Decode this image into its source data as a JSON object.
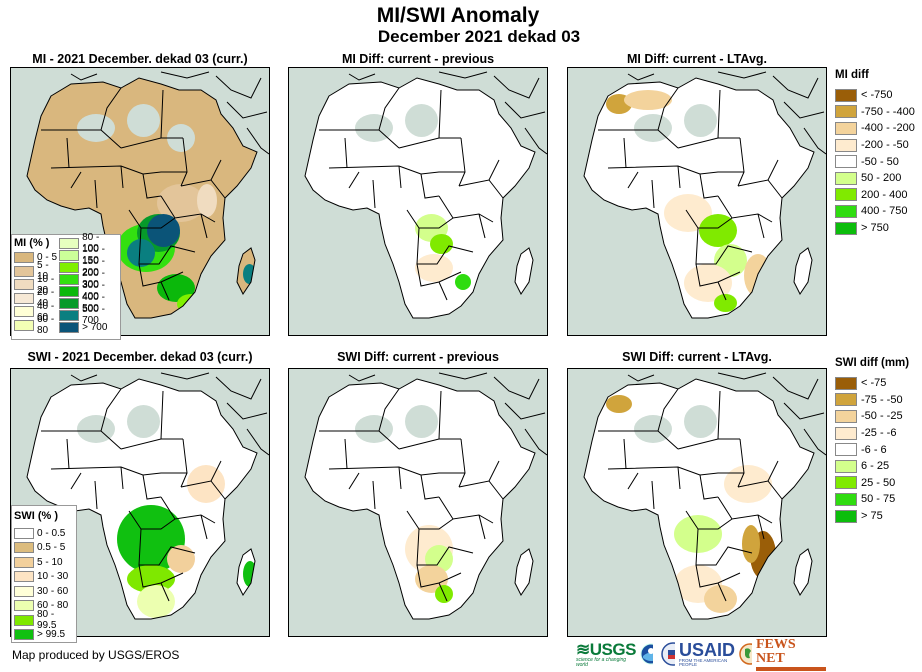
{
  "header": {
    "title": "MI/SWI Anomaly",
    "subtitle": "December 2021 dekad 03"
  },
  "panels": [
    {
      "id": "mi-current",
      "title": "MI - 2021 December. dekad 03 (curr.)",
      "variable": "MI",
      "type": "current"
    },
    {
      "id": "mi-diff-previous",
      "title": "MI Diff: current - previous",
      "variable": "MI",
      "type": "diff-previous"
    },
    {
      "id": "mi-diff-ltavg",
      "title": "MI Diff: current - LTAvg.",
      "variable": "MI",
      "type": "diff-ltavg"
    },
    {
      "id": "swi-current",
      "title": "SWI - 2021 December. dekad 03 (curr.)",
      "variable": "SWI",
      "type": "current"
    },
    {
      "id": "swi-diff-previous",
      "title": "SWI Diff: current - previous",
      "variable": "SWI",
      "type": "diff-previous"
    },
    {
      "id": "swi-diff-ltavg",
      "title": "SWI Diff: current - LTAvg.",
      "variable": "SWI",
      "type": "diff-ltavg"
    }
  ],
  "legends": {
    "mi_percent": {
      "title": "MI (% )",
      "col1": [
        {
          "label": "0 - 5",
          "color": "#d9b77e"
        },
        {
          "label": "5 - 10",
          "color": "#e3c59a"
        },
        {
          "label": "10 - 20",
          "color": "#f0dcc0"
        },
        {
          "label": "20 - 40",
          "color": "#f7e9d6"
        },
        {
          "label": "40 - 60",
          "color": "#ffffd6"
        },
        {
          "label": "60 - 80",
          "color": "#f3ffb5"
        }
      ],
      "col2": [
        {
          "label": "80 - 100",
          "color": "#e6ffbf"
        },
        {
          "label": "100 - 150",
          "color": "#ccff99"
        },
        {
          "label": "150 - 200",
          "color": "#80f000"
        },
        {
          "label": "200 - 300",
          "color": "#33e010"
        },
        {
          "label": "300 - 400",
          "color": "#0bb80b"
        },
        {
          "label": "400 - 500",
          "color": "#079a2a"
        },
        {
          "label": "500 - 700",
          "color": "#0a7f80"
        },
        {
          "label": "> 700",
          "color": "#0b5478"
        }
      ]
    },
    "swi_percent": {
      "title": "SWI (% )",
      "items": [
        {
          "label": "0 - 0.5",
          "color": "#ffffff"
        },
        {
          "label": "0.5 - 5",
          "color": "#dcbc7e"
        },
        {
          "label": "5 - 10",
          "color": "#f2d09c"
        },
        {
          "label": "10 - 30",
          "color": "#fde4c4"
        },
        {
          "label": "30 - 60",
          "color": "#ffffd8"
        },
        {
          "label": "60 - 80",
          "color": "#ecffb0"
        },
        {
          "label": "80 - 99.5",
          "color": "#7fe800"
        },
        {
          "label": "> 99.5",
          "color": "#10c010"
        }
      ]
    },
    "mi_diff": {
      "title": "MI diff",
      "items": [
        {
          "label": "< -750",
          "color": "#9a5e08"
        },
        {
          "label": "-750 - -400",
          "color": "#d0a43c"
        },
        {
          "label": "-400 - -200",
          "color": "#f3d39c"
        },
        {
          "label": "-200 - -50",
          "color": "#feebcf"
        },
        {
          "label": "-50 - 50",
          "color": "#ffffff"
        },
        {
          "label": "50 - 200",
          "color": "#d3ff8c"
        },
        {
          "label": "200 - 400",
          "color": "#80ea00"
        },
        {
          "label": "400 - 750",
          "color": "#2fdc10"
        },
        {
          "label": "> 750",
          "color": "#0cbd0c"
        }
      ]
    },
    "swi_diff": {
      "title": "SWI diff (mm)",
      "items": [
        {
          "label": "< -75",
          "color": "#9a5e08"
        },
        {
          "label": "-75 - -50",
          "color": "#d0a43c"
        },
        {
          "label": "-50 - -25",
          "color": "#f3d39c"
        },
        {
          "label": "-25 - -6",
          "color": "#feebcf"
        },
        {
          "label": "-6 - 6",
          "color": "#ffffff"
        },
        {
          "label": "6 - 25",
          "color": "#d3ff8c"
        },
        {
          "label": "25 - 50",
          "color": "#80ea00"
        },
        {
          "label": "50 - 75",
          "color": "#2fdc10"
        },
        {
          "label": "> 75",
          "color": "#0cbd0c"
        }
      ]
    }
  },
  "colors": {
    "ocean": "#cfddd6",
    "no_data": "#cfddd6",
    "border": "#000000"
  },
  "footer": {
    "credit": "Map produced by USGS/EROS",
    "logos": [
      "USGS",
      "NOAA",
      "USAID",
      "FEWS NET"
    ],
    "usgs_tagline": "science for a changing world",
    "usaid_tagline": "FROM THE AMERICAN PEOPLE"
  }
}
